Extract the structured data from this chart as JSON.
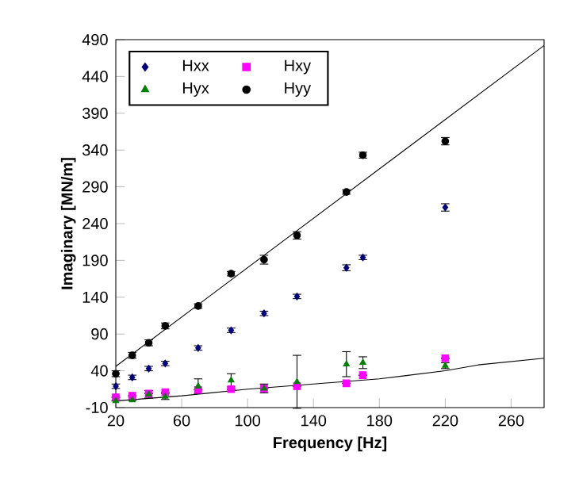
{
  "chart_data": {
    "type": "scatter",
    "xlabel": "Frequency [Hz]",
    "ylabel": "Imaginary [MN/m]",
    "xlim": [
      20,
      280
    ],
    "xticks": [
      20,
      60,
      100,
      140,
      180,
      220,
      260
    ],
    "ylim": [
      -10,
      490
    ],
    "yticks": [
      -10,
      40,
      90,
      140,
      190,
      240,
      290,
      340,
      390,
      440,
      490
    ],
    "legend": "top left",
    "grid": false,
    "series": [
      {
        "name": "Hxx",
        "color": "#000080",
        "marker": "diamond",
        "x": [
          20,
          30,
          40,
          50,
          70,
          90,
          110,
          130,
          160,
          170,
          220
        ],
        "values": [
          19,
          31,
          43,
          50,
          71,
          95,
          118,
          141,
          180,
          194,
          262
        ],
        "errors": [
          3,
          3,
          3,
          3,
          3,
          3,
          3,
          3,
          4,
          3,
          5
        ]
      },
      {
        "name": "Hxy",
        "color": "#ff00ff",
        "marker": "square",
        "x": [
          20,
          30,
          40,
          50,
          70,
          90,
          110,
          130,
          160,
          170,
          220
        ],
        "values": [
          4,
          6,
          9,
          11,
          14,
          15,
          16,
          19,
          23,
          34,
          57
        ],
        "errors": [
          null,
          null,
          null,
          null,
          null,
          null,
          null,
          null,
          null,
          null,
          null
        ]
      },
      {
        "name": "Hyx",
        "color": "#008000",
        "marker": "triangle",
        "x": [
          20,
          30,
          40,
          50,
          70,
          90,
          110,
          130,
          160,
          170,
          220
        ],
        "values": [
          -1,
          0,
          8,
          5,
          19,
          27,
          16,
          25,
          49,
          51,
          47
        ],
        "errors": [
          null,
          null,
          5,
          4,
          10,
          9,
          6,
          36,
          17,
          8,
          4
        ]
      },
      {
        "name": "Hyy",
        "color": "#000000",
        "marker": "circle",
        "x": [
          20,
          30,
          40,
          50,
          70,
          90,
          110,
          130,
          160,
          170,
          220
        ],
        "values": [
          36,
          61,
          78,
          101,
          128,
          172,
          191,
          224,
          283,
          333,
          352
        ],
        "errors": [
          4,
          4,
          4,
          4,
          3,
          3,
          6,
          5,
          3,
          4,
          5
        ]
      },
      {
        "type": "line",
        "color": "#000000",
        "marker": "none",
        "x": [
          20,
          280
        ],
        "values": [
          46,
          482
        ]
      },
      {
        "type": "line",
        "color": "#000000",
        "marker": "none",
        "x": [
          20,
          60,
          100,
          140,
          180,
          220,
          240,
          280
        ],
        "values": [
          -1,
          6,
          15,
          22,
          29,
          40,
          48,
          57
        ]
      }
    ]
  }
}
